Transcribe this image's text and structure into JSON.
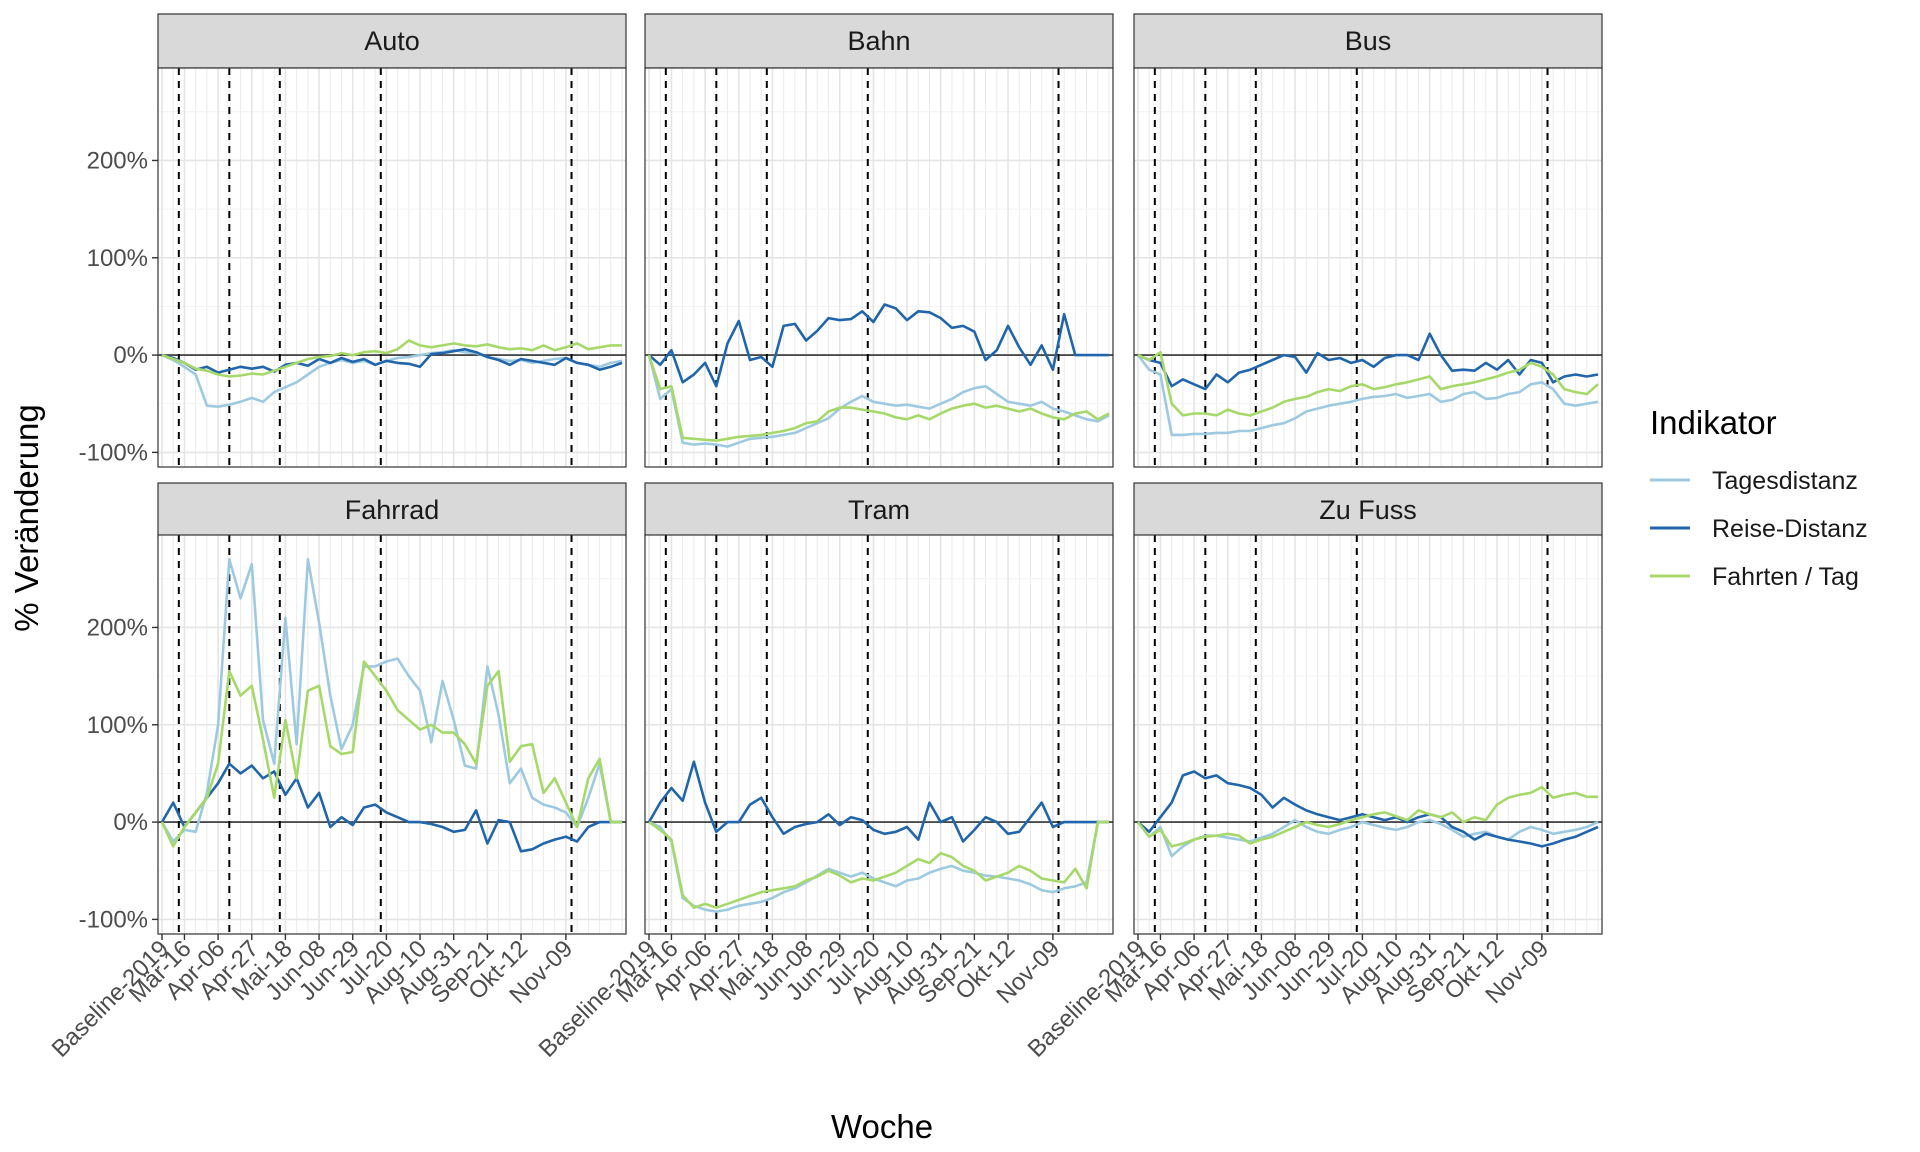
{
  "chart_data": {
    "type": "line",
    "xlabel": "Woche",
    "ylabel": "% Veränderung",
    "ylim": [
      -115,
      295
    ],
    "y_ticks": [
      -100,
      0,
      100,
      200
    ],
    "y_tick_labels": [
      "-100%",
      "0%",
      "100%",
      "200%"
    ],
    "x_tick_labels": [
      "Baseline-2019",
      "Mär-16",
      "Apr-06",
      "Apr-27",
      "Mai-18",
      "Jun-08",
      "Jun-29",
      "Jul-20",
      "Aug-10",
      "Aug-31",
      "Sep-21",
      "Okt-12",
      "Nov-09"
    ],
    "x_tick_index": [
      0,
      2,
      5,
      8,
      11,
      14,
      17,
      20,
      23,
      26,
      29,
      32,
      36
    ],
    "vlines_index": [
      1.5,
      6,
      10.5,
      19.5,
      36.5
    ],
    "weeks": 42,
    "grid": true,
    "legend": {
      "title": "Indikator",
      "placement": "right"
    },
    "series": [
      {
        "key": "tages",
        "name": "Tagesdistanz",
        "color": "#9ecae1"
      },
      {
        "key": "reise",
        "name": "Reise-Distanz",
        "color": "#2166ac"
      },
      {
        "key": "fahrten",
        "name": "Fahrten / Tag",
        "color": "#a6d96a"
      }
    ],
    "panels": [
      {
        "title": "Auto",
        "tages": [
          0,
          -5,
          -12,
          -20,
          -52,
          -53,
          -51,
          -48,
          -44,
          -48,
          -38,
          -33,
          -28,
          -20,
          -12,
          -8,
          -5,
          -8,
          -6,
          -10,
          -6,
          -3,
          -2,
          0,
          2,
          3,
          5,
          3,
          2,
          -2,
          -4,
          -6,
          -5,
          -8,
          -6,
          -4,
          -3,
          -8,
          -10,
          -12,
          -8,
          -6
        ],
        "reise": [
          0,
          -3,
          -8,
          -15,
          -12,
          -18,
          -15,
          -12,
          -14,
          -12,
          -17,
          -10,
          -8,
          -11,
          -4,
          -8,
          -3,
          -7,
          -4,
          -10,
          -6,
          -8,
          -9,
          -12,
          1,
          2,
          4,
          6,
          3,
          -2,
          -5,
          -10,
          -4,
          -6,
          -8,
          -10,
          -3,
          -8,
          -10,
          -15,
          -12,
          -8
        ],
        "fahrten": [
          0,
          -4,
          -8,
          -14,
          -16,
          -20,
          -22,
          -21,
          -19,
          -20,
          -16,
          -12,
          -8,
          -4,
          -2,
          -1,
          2,
          0,
          3,
          4,
          2,
          6,
          15,
          10,
          8,
          10,
          12,
          10,
          9,
          11,
          8,
          6,
          7,
          5,
          10,
          5,
          8,
          12,
          6,
          8,
          10,
          10
        ]
      },
      {
        "title": "Bahn",
        "tages": [
          0,
          -45,
          -35,
          -90,
          -92,
          -91,
          -92,
          -94,
          -90,
          -86,
          -85,
          -84,
          -82,
          -80,
          -75,
          -70,
          -65,
          -55,
          -48,
          -42,
          -48,
          -50,
          -52,
          -51,
          -53,
          -55,
          -50,
          -45,
          -38,
          -34,
          -32,
          -40,
          -48,
          -50,
          -52,
          -48,
          -55,
          -58,
          -62,
          -66,
          -68,
          -62
        ],
        "reise": [
          0,
          -10,
          5,
          -28,
          -20,
          -8,
          -32,
          12,
          35,
          -5,
          -2,
          -12,
          30,
          32,
          15,
          25,
          38,
          36,
          37,
          45,
          34,
          52,
          48,
          36,
          45,
          44,
          38,
          28,
          30,
          24,
          -5,
          5,
          30,
          8,
          -10,
          10,
          -15,
          42,
          0,
          0,
          0,
          0
        ],
        "fahrten": [
          0,
          -35,
          -32,
          -85,
          -86,
          -87,
          -88,
          -86,
          -84,
          -83,
          -82,
          -80,
          -78,
          -75,
          -70,
          -68,
          -58,
          -54,
          -54,
          -56,
          -58,
          -60,
          -64,
          -66,
          -62,
          -66,
          -60,
          -55,
          -52,
          -50,
          -54,
          -52,
          -55,
          -58,
          -55,
          -60,
          -64,
          -66,
          -60,
          -58,
          -66,
          -60
        ]
      },
      {
        "title": "Bus",
        "tages": [
          0,
          -15,
          -20,
          -82,
          -82,
          -81,
          -81,
          -80,
          -80,
          -78,
          -78,
          -75,
          -72,
          -70,
          -65,
          -58,
          -55,
          -52,
          -50,
          -48,
          -45,
          -43,
          -42,
          -40,
          -44,
          -42,
          -40,
          -48,
          -46,
          -40,
          -38,
          -45,
          -44,
          -40,
          -38,
          -30,
          -28,
          -35,
          -50,
          -52,
          -50,
          -48
        ],
        "reise": [
          0,
          -5,
          -8,
          -32,
          -25,
          -30,
          -35,
          -20,
          -28,
          -18,
          -15,
          -10,
          -5,
          0,
          -2,
          -18,
          2,
          -5,
          -3,
          -8,
          -5,
          -12,
          -3,
          0,
          0,
          -5,
          22,
          0,
          -16,
          -15,
          -16,
          -8,
          -15,
          -5,
          -20,
          -5,
          -8,
          -28,
          -22,
          -20,
          -22,
          -20
        ],
        "fahrten": [
          0,
          -5,
          3,
          -50,
          -62,
          -60,
          -60,
          -62,
          -56,
          -60,
          -62,
          -58,
          -54,
          -48,
          -45,
          -43,
          -38,
          -35,
          -37,
          -32,
          -30,
          -35,
          -33,
          -30,
          -28,
          -25,
          -22,
          -35,
          -32,
          -30,
          -28,
          -25,
          -22,
          -18,
          -15,
          -8,
          -12,
          -20,
          -35,
          -38,
          -40,
          -30
        ]
      },
      {
        "title": "Fahrrad",
        "tages": [
          0,
          -20,
          -8,
          -10,
          30,
          100,
          270,
          230,
          265,
          105,
          60,
          210,
          80,
          270,
          205,
          130,
          75,
          100,
          160,
          160,
          165,
          168,
          150,
          135,
          82,
          145,
          105,
          58,
          55,
          160,
          110,
          40,
          55,
          25,
          18,
          15,
          10,
          -5,
          25,
          60,
          0,
          0
        ],
        "reise": [
          0,
          20,
          -5,
          10,
          25,
          40,
          60,
          50,
          58,
          45,
          52,
          28,
          45,
          15,
          30,
          -5,
          5,
          -3,
          15,
          18,
          10,
          5,
          0,
          0,
          -2,
          -5,
          -10,
          -8,
          12,
          -22,
          2,
          0,
          -30,
          -28,
          -22,
          -18,
          -15,
          -20,
          -5,
          0,
          0,
          0
        ],
        "fahrten": [
          0,
          -25,
          -5,
          10,
          25,
          60,
          155,
          130,
          140,
          85,
          25,
          105,
          45,
          135,
          140,
          78,
          70,
          72,
          165,
          150,
          135,
          115,
          105,
          95,
          100,
          92,
          92,
          80,
          60,
          140,
          155,
          62,
          78,
          80,
          30,
          45,
          20,
          -5,
          45,
          65,
          0,
          0
        ]
      },
      {
        "title": "Tram",
        "tages": [
          0,
          -5,
          -20,
          -78,
          -86,
          -90,
          -92,
          -90,
          -86,
          -84,
          -82,
          -78,
          -72,
          -68,
          -62,
          -55,
          -48,
          -52,
          -56,
          -52,
          -58,
          -62,
          -66,
          -60,
          -58,
          -52,
          -48,
          -45,
          -50,
          -52,
          -55,
          -56,
          -58,
          -60,
          -64,
          -70,
          -72,
          -68,
          -66,
          -62,
          0,
          0
        ],
        "reise": [
          0,
          20,
          35,
          22,
          62,
          20,
          -10,
          0,
          0,
          18,
          25,
          5,
          -12,
          -5,
          -2,
          0,
          8,
          -3,
          5,
          2,
          -8,
          -12,
          -10,
          -5,
          -18,
          20,
          0,
          5,
          -20,
          -8,
          5,
          0,
          -12,
          -10,
          5,
          20,
          -5,
          0,
          0,
          0,
          0,
          0
        ],
        "fahrten": [
          0,
          -8,
          -18,
          -75,
          -88,
          -84,
          -88,
          -84,
          -80,
          -76,
          -72,
          -70,
          -68,
          -66,
          -60,
          -56,
          -50,
          -55,
          -62,
          -58,
          -60,
          -56,
          -52,
          -45,
          -38,
          -42,
          -32,
          -36,
          -45,
          -50,
          -60,
          -56,
          -52,
          -45,
          -50,
          -58,
          -60,
          -62,
          -48,
          -68,
          0,
          0
        ]
      },
      {
        "title": "Zu Fuss",
        "tages": [
          0,
          -15,
          -5,
          -35,
          -25,
          -18,
          -14,
          -14,
          -16,
          -18,
          -20,
          -16,
          -12,
          -5,
          2,
          -5,
          -10,
          -12,
          -8,
          -5,
          0,
          -3,
          -6,
          -8,
          -5,
          0,
          2,
          -2,
          -8,
          -15,
          -12,
          -10,
          -15,
          -18,
          -10,
          -5,
          -8,
          -12,
          -10,
          -8,
          -5,
          0
        ],
        "reise": [
          0,
          -10,
          5,
          20,
          48,
          52,
          45,
          48,
          40,
          38,
          35,
          28,
          15,
          25,
          18,
          12,
          8,
          5,
          2,
          5,
          8,
          5,
          2,
          5,
          0,
          5,
          8,
          5,
          -5,
          -10,
          -18,
          -12,
          -15,
          -18,
          -20,
          -22,
          -25,
          -22,
          -18,
          -15,
          -10,
          -5
        ],
        "fahrten": [
          0,
          -15,
          -8,
          -25,
          -22,
          -18,
          -15,
          -14,
          -12,
          -14,
          -22,
          -18,
          -15,
          -10,
          -5,
          0,
          -3,
          -5,
          -2,
          2,
          5,
          8,
          10,
          6,
          2,
          12,
          8,
          5,
          10,
          0,
          5,
          2,
          18,
          25,
          28,
          30,
          36,
          25,
          28,
          30,
          26,
          26
        ]
      }
    ]
  }
}
